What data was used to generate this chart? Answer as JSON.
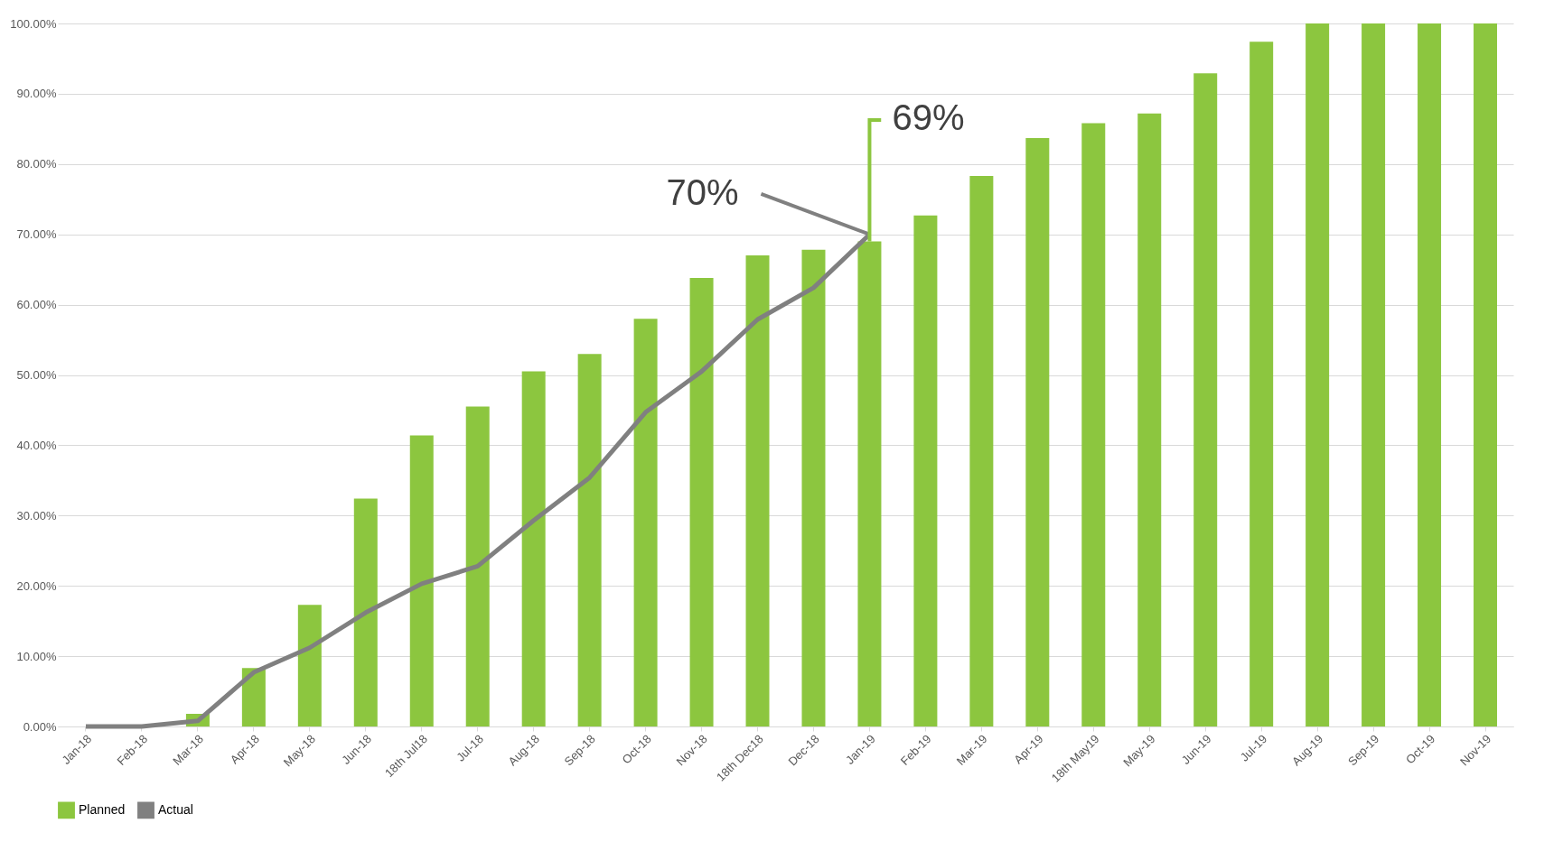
{
  "chart_data": {
    "type": "bar",
    "categories": [
      "Jan-18",
      "Feb-18",
      "Mar-18",
      "Apr-18",
      "May-18",
      "Jun-18",
      "18th Jul18",
      "Jul-18",
      "Aug-18",
      "Sep-18",
      "Oct-18",
      "Nov-18",
      "18th Dec18",
      "Dec-18",
      "Jan-19",
      "Feb-19",
      "Mar-19",
      "Apr-19",
      "18th May19",
      "May-19",
      "Jun-19",
      "Jul-19",
      "Aug-19",
      "Sep-19",
      "Oct-19",
      "Nov-19"
    ],
    "series": [
      {
        "name": "Planned",
        "color": "#8cc63f",
        "values": [
          0,
          0,
          1.8,
          8.3,
          17.3,
          32.4,
          41.4,
          45.5,
          50.5,
          53,
          58,
          63.8,
          67,
          67.8,
          69,
          72.7,
          78.3,
          83.7,
          85.8,
          87.2,
          92.9,
          97.4,
          100,
          100,
          100,
          100
        ]
      },
      {
        "name": "Actual",
        "type": "line",
        "color": "#808080",
        "values": [
          0,
          0,
          0.8,
          7.7,
          11.2,
          16.2,
          20.3,
          22.8,
          29.3,
          35.4,
          44.7,
          50.5,
          57.9,
          62.4,
          70,
          null,
          null,
          null,
          null,
          null,
          null,
          null,
          null,
          null,
          null,
          null
        ]
      }
    ],
    "ylim": [
      0,
      100
    ],
    "yticks": [
      {
        "value": 0,
        "label": "0.00%"
      },
      {
        "value": 10,
        "label": "10.00%"
      },
      {
        "value": 20,
        "label": "20.00%"
      },
      {
        "value": 30,
        "label": "30.00%"
      },
      {
        "value": 40,
        "label": "40.00%"
      },
      {
        "value": 50,
        "label": "50.00%"
      },
      {
        "value": 60,
        "label": "60.00%"
      },
      {
        "value": 70,
        "label": "70.00%"
      },
      {
        "value": 80,
        "label": "80.00%"
      },
      {
        "value": 90,
        "label": "90.00%"
      },
      {
        "value": 100,
        "label": "100.00%"
      }
    ],
    "annotations": [
      {
        "text": "70%",
        "x": "Jan-19",
        "y": 70
      },
      {
        "text": "69%",
        "x": "Jan-19",
        "y": 69
      }
    ],
    "grid": "y",
    "legend": "bottom",
    "marker": "none",
    "line_style": "solid"
  }
}
